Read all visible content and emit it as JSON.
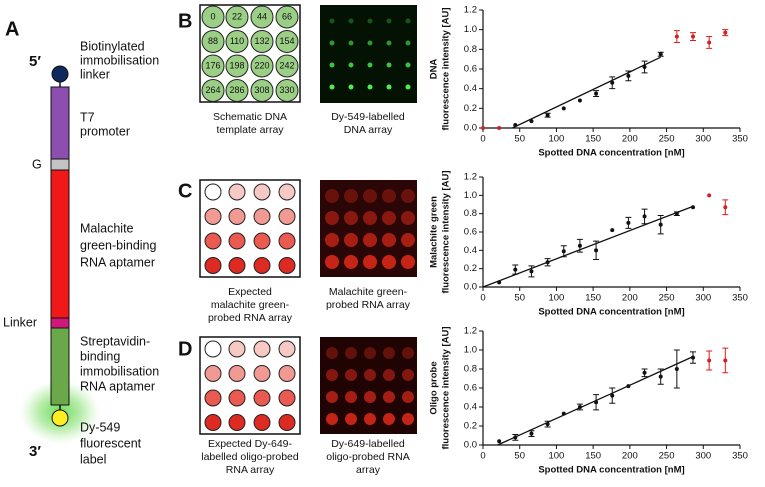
{
  "panels": {
    "a": "A",
    "b": "B",
    "c": "C",
    "d": "D"
  },
  "construct": {
    "five_prime": "5′",
    "three_prime": "3′",
    "linker_label": [
      "Biotinylated",
      "immobilisation",
      "linker"
    ],
    "promoter_label": [
      "T7",
      "promoter"
    ],
    "g_label": "G",
    "aptamer_label": [
      "Malachite",
      "green-binding",
      "RNA aptamer"
    ],
    "linker2_label": "Linker",
    "strep_label": [
      "Streptavidin-",
      "binding",
      "immobilisation",
      "RNA aptamer"
    ],
    "dye_label": [
      "Dy-549",
      "fluorescent",
      "label"
    ]
  },
  "schematic": {
    "values": [
      "0",
      "22",
      "44",
      "66",
      "88",
      "110",
      "132",
      "154",
      "176",
      "198",
      "220",
      "242",
      "264",
      "286",
      "308",
      "330"
    ]
  },
  "captions": {
    "b_schematic": [
      "Schematic DNA",
      "template array"
    ],
    "b_image": [
      "Dy-549-labelled",
      "DNA array"
    ],
    "c_expected": [
      "Expected",
      "malachite green-",
      "probed RNA array"
    ],
    "c_image": [
      "Malachite green-",
      "probed RNA array"
    ],
    "d_expected": [
      "Expected Dy-649-",
      "labelled oligo-probed",
      "RNA array"
    ],
    "d_image": [
      "Dy-649-labelled",
      "oligo-probed RNA",
      "array"
    ]
  },
  "chart_data": [
    {
      "type": "scatter",
      "x_label": "Spotted DNA concentration [nM]",
      "y_label": [
        "DNA",
        "fluorescence intensity [AU]"
      ],
      "xlim": [
        0,
        350
      ],
      "xticks": [
        0,
        50,
        100,
        150,
        200,
        250,
        300,
        350
      ],
      "ylim": [
        0,
        1.2
      ],
      "yticks": [
        {
          "value": 0,
          "label": "0.0"
        },
        {
          "value": 0.2,
          "label": "0.2"
        },
        {
          "value": 0.4,
          "label": "0.4"
        },
        {
          "value": 0.6,
          "label": "0.6"
        },
        {
          "value": 0.8,
          "label": "0.8"
        },
        {
          "value": 1,
          "label": "1.0"
        },
        {
          "value": 1.2,
          "label": "1.2"
        }
      ],
      "series": [
        {
          "color": "#111111",
          "x": [
            44,
            66,
            88,
            110,
            132,
            154,
            176,
            198,
            220,
            242
          ],
          "values": [
            0.03,
            0.07,
            0.13,
            0.2,
            0.28,
            0.35,
            0.46,
            0.53,
            0.62,
            0.75
          ],
          "errors": [
            null,
            null,
            0.02,
            null,
            null,
            0.03,
            0.06,
            0.05,
            0.06,
            0.02
          ]
        },
        {
          "color": "#d42020",
          "x": [
            0,
            22,
            264,
            286,
            308,
            330
          ],
          "values": [
            0,
            0,
            0.93,
            0.93,
            0.87,
            0.97
          ],
          "errors": [
            null,
            null,
            0.06,
            0.04,
            0.06,
            0.03
          ]
        }
      ],
      "fit": {
        "color": "#111111",
        "x": [
          40,
          242
        ],
        "values": [
          0,
          0.72
        ]
      }
    },
    {
      "type": "scatter",
      "x_label": "Spotted DNA concentration [nM]",
      "y_label": [
        "Malachite green",
        "fluorescence intensity [AU]"
      ],
      "xlim": [
        0,
        350
      ],
      "xticks": [
        0,
        50,
        100,
        150,
        200,
        250,
        300,
        350
      ],
      "ylim": [
        0,
        1.2
      ],
      "yticks": [
        {
          "value": 0,
          "label": "0.0"
        },
        {
          "value": 0.2,
          "label": "0.2"
        },
        {
          "value": 0.4,
          "label": "0.4"
        },
        {
          "value": 0.6,
          "label": "0.6"
        },
        {
          "value": 0.8,
          "label": "0.8"
        },
        {
          "value": 1,
          "label": "1.0"
        },
        {
          "value": 1.2,
          "label": "1.2"
        }
      ],
      "series": [
        {
          "color": "#111111",
          "x": [
            22,
            44,
            66,
            88,
            110,
            132,
            154,
            176,
            198,
            220,
            242,
            264,
            286
          ],
          "values": [
            0.05,
            0.19,
            0.17,
            0.27,
            0.39,
            0.45,
            0.4,
            0.62,
            0.7,
            0.77,
            0.68,
            0.8,
            0.87
          ],
          "errors": [
            null,
            0.05,
            0.06,
            0.04,
            0.06,
            0.07,
            0.1,
            null,
            0.06,
            0.08,
            0.1,
            0.02,
            null
          ]
        },
        {
          "color": "#d42020",
          "x": [
            308,
            330
          ],
          "values": [
            1,
            0.87
          ],
          "errors": [
            null,
            0.08
          ]
        }
      ],
      "fit": {
        "color": "#111111",
        "x": [
          0,
          286
        ],
        "values": [
          0,
          0.88
        ]
      }
    },
    {
      "type": "scatter",
      "x_label": "Spotted DNA concentration [nM]",
      "y_label": [
        "Oligo probe",
        "fluorescence intensity [AU]"
      ],
      "xlim": [
        0,
        350
      ],
      "xticks": [
        0,
        50,
        100,
        150,
        200,
        250,
        300,
        350
      ],
      "ylim": [
        0,
        1.2
      ],
      "yticks": [
        {
          "value": 0,
          "label": "0.0"
        },
        {
          "value": 0.2,
          "label": "0.2"
        },
        {
          "value": 0.4,
          "label": "0.4"
        },
        {
          "value": 0.6,
          "label": "0.6"
        },
        {
          "value": 0.8,
          "label": "0.8"
        },
        {
          "value": 1,
          "label": "1.0"
        },
        {
          "value": 1.2,
          "label": "1.2"
        }
      ],
      "series": [
        {
          "color": "#111111",
          "x": [
            22,
            44,
            66,
            88,
            110,
            132,
            154,
            176,
            198,
            220,
            242,
            264,
            286
          ],
          "values": [
            0.04,
            0.08,
            0.12,
            0.22,
            0.33,
            0.4,
            0.45,
            0.52,
            0.62,
            0.76,
            0.72,
            0.8,
            0.92
          ],
          "errors": [
            null,
            0.03,
            0.03,
            0.03,
            null,
            0.03,
            0.08,
            0.08,
            null,
            0.04,
            0.08,
            0.2,
            0.06
          ]
        },
        {
          "color": "#d42020",
          "x": [
            308,
            330
          ],
          "values": [
            0.89,
            0.89
          ],
          "errors": [
            0.1,
            0.13
          ]
        }
      ],
      "fit": {
        "color": "#111111",
        "x": [
          20,
          286
        ],
        "values": [
          0,
          0.93
        ]
      }
    }
  ]
}
